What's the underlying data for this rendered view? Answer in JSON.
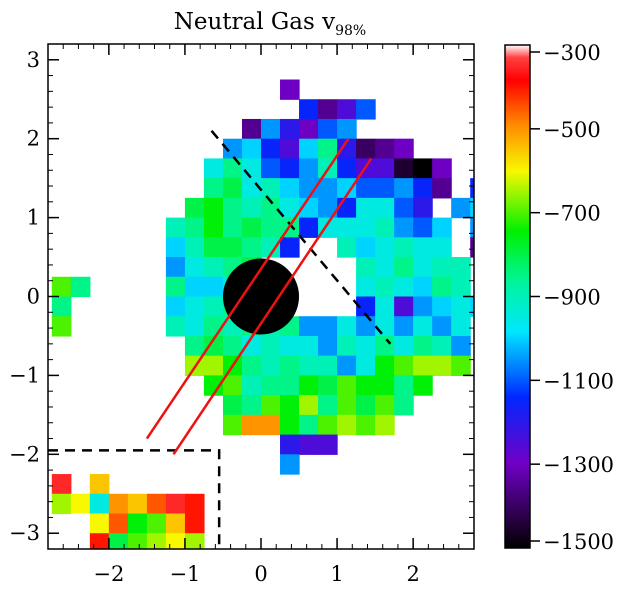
{
  "chart_data": {
    "type": "heatmap",
    "title": {
      "main": "Neutral Gas v",
      "subscript": "98%"
    },
    "xlabel": "",
    "ylabel": "",
    "xlim": [
      -2.8,
      2.8
    ],
    "ylim": [
      -3.2,
      3.2
    ],
    "x_ticks": [
      -2,
      -1,
      0,
      1,
      2
    ],
    "y_ticks": [
      -3,
      -2,
      -1,
      0,
      1,
      2,
      3
    ],
    "pixel_size": 0.25,
    "colorbar": {
      "colormap": "rainbow (black-purple-blue-cyan-green-yellow-red-white)",
      "range": [
        -1500,
        -300
      ],
      "ticks": [
        -300,
        -500,
        -700,
        -900,
        -1100,
        -1300,
        -1500
      ],
      "tick_labels": [
        "-300",
        "-500",
        "-700",
        "-900",
        "-1100",
        "-1300",
        "-1500"
      ]
    },
    "masked_circle": {
      "center": [
        0,
        0
      ],
      "radius": 0.5,
      "color": "#000000"
    },
    "dashed_lines": [
      {
        "from": [
          -0.65,
          2.1
        ],
        "to": [
          1.7,
          -0.6
        ]
      }
    ],
    "dashed_box": {
      "x": [
        -2.8,
        -0.55
      ],
      "y": [
        -3.2,
        -1.95
      ]
    },
    "red_lines": [
      {
        "from": [
          -1.5,
          -1.8
        ],
        "to": [
          1.15,
          2.0
        ]
      },
      {
        "from": [
          -1.15,
          -2.0
        ],
        "to": [
          1.45,
          1.75
        ]
      }
    ],
    "rows": [
      {
        "y": 2.5,
        "x0": 0.25,
        "values": [
          -1300
        ]
      },
      {
        "y": 2.25,
        "x0": 0.5,
        "values": [
          -1150,
          -1350,
          -1250,
          -1100
        ]
      },
      {
        "y": 2.0,
        "x0": -0.25,
        "values": [
          -1350,
          -1050,
          -1200,
          -1300,
          -1100,
          -1050
        ]
      },
      {
        "y": 1.75,
        "x0": -0.5,
        "values": [
          -1050,
          -1000,
          -1150,
          -1250,
          -1000,
          -850,
          -1200,
          -1400,
          -1350,
          -1300
        ]
      },
      {
        "y": 1.5,
        "x0": -0.75,
        "values": [
          -950,
          -850,
          -950,
          -1100,
          -1150,
          -1050,
          -900,
          -1150,
          -1250,
          -1250,
          -1450,
          -1500,
          -1300
        ]
      },
      {
        "y": 1.25,
        "x0": -0.75,
        "values": [
          -850,
          -800,
          -950,
          -900,
          -1000,
          -1050,
          -1050,
          -1000,
          -1100,
          -1100,
          -1050,
          -1150,
          -1350,
          null,
          -1150
        ]
      },
      {
        "y": 1.0,
        "x0": -1.0,
        "values": [
          -800,
          -750,
          -850,
          -900,
          -850,
          -950,
          -1000,
          -1050,
          -1150,
          -950,
          -950,
          -1100,
          -1200,
          null,
          -1050,
          -1000
        ]
      },
      {
        "y": 0.75,
        "x0": -1.25,
        "values": [
          -900,
          -850,
          -750,
          -850,
          -800,
          -850,
          -850,
          -1150,
          -950,
          -950,
          -950,
          -900,
          -1050,
          -1100,
          -1000,
          null,
          -1050
        ]
      },
      {
        "y": 0.5,
        "x0": -1.25,
        "values": [
          -1000,
          -900,
          -800,
          -800,
          -850,
          -900,
          -1150,
          null,
          null,
          -900,
          -1000,
          -950,
          -900,
          -950,
          -950,
          null,
          -1350,
          -1100
        ]
      },
      {
        "y": 0.25,
        "x0": -1.25,
        "values": [
          -1050,
          -950,
          -900,
          -850,
          -800,
          null,
          null,
          null,
          null,
          null,
          -900,
          -950,
          -850,
          -950,
          -900,
          -900
        ]
      },
      {
        "y": 0.0,
        "x0": -1.25,
        "values": [
          -850,
          -1000,
          -1000,
          -950,
          -1100,
          null,
          null,
          null,
          null,
          null,
          -950,
          -900,
          -950,
          -1000,
          -850,
          -900,
          null,
          null,
          -1100
        ]
      },
      {
        "y": -0.25,
        "x0": -1.25,
        "values": [
          -1000,
          -950,
          -900,
          -850,
          -900,
          null,
          null,
          null,
          null,
          null,
          -1150,
          -950,
          -1250,
          -1050,
          -1000,
          -950,
          -1000
        ]
      },
      {
        "y": -0.5,
        "x0": -1.25,
        "values": [
          -900,
          -950,
          -850,
          -900,
          -850,
          -900,
          -850,
          -1050,
          -1050,
          -950,
          -1050,
          -950,
          -1050,
          -950,
          -1050,
          -950
        ]
      },
      {
        "y": -0.75,
        "x0": -1.0,
        "values": [
          -850,
          -800,
          -850,
          -950,
          -900,
          -950,
          -950,
          -1050,
          -900,
          -950,
          -850,
          -950,
          -850,
          -900,
          -1050
        ]
      },
      {
        "y": -1.0,
        "x0": -1.0,
        "values": [
          -650,
          -650,
          -750,
          -850,
          -900,
          -850,
          -900,
          -900,
          -1050,
          -950,
          -750,
          -700,
          -650,
          -650,
          -700
        ]
      },
      {
        "y": -1.25,
        "x0": -0.75,
        "values": [
          -750,
          -700,
          -900,
          -850,
          -850,
          -750,
          -800,
          -700,
          -750,
          -750,
          -850,
          -750
        ]
      },
      {
        "y": -1.5,
        "x0": -0.5,
        "values": [
          -800,
          -850,
          -700,
          -750,
          -650,
          -850,
          -700,
          -800,
          -700,
          -850
        ]
      },
      {
        "y": -1.75,
        "x0": -0.5,
        "values": [
          -700,
          -500,
          -500,
          -750,
          -850,
          -700,
          -650,
          -700,
          -650
        ]
      },
      {
        "y": -2.0,
        "x0": 0.25,
        "values": [
          -1200,
          -1250,
          -1250
        ]
      },
      {
        "y": -2.25,
        "x0": 0.25,
        "values": [
          -1050
        ]
      },
      {
        "y": 0.0,
        "x0": -2.75,
        "values": [
          -700,
          -850
        ]
      },
      {
        "y": -0.25,
        "x0": -2.75,
        "values": [
          -850
        ]
      },
      {
        "y": -0.5,
        "x0": -2.75,
        "values": [
          -700
        ]
      },
      {
        "y": -2.5,
        "x0": -2.75,
        "values": [
          -350,
          null,
          -550
        ]
      },
      {
        "y": -2.75,
        "x0": -2.75,
        "values": [
          -650,
          -600,
          -950,
          -500,
          -550,
          -450,
          -350,
          -400
        ]
      },
      {
        "y": -3.0,
        "x0": -2.75,
        "values": [
          null,
          -300,
          -600,
          -450,
          -750,
          -700,
          -550,
          -400
        ]
      },
      {
        "y": -3.25,
        "x0": -2.75,
        "values": [
          null,
          -300,
          -400,
          -800,
          -700,
          -650,
          -600,
          -650
        ]
      }
    ]
  }
}
